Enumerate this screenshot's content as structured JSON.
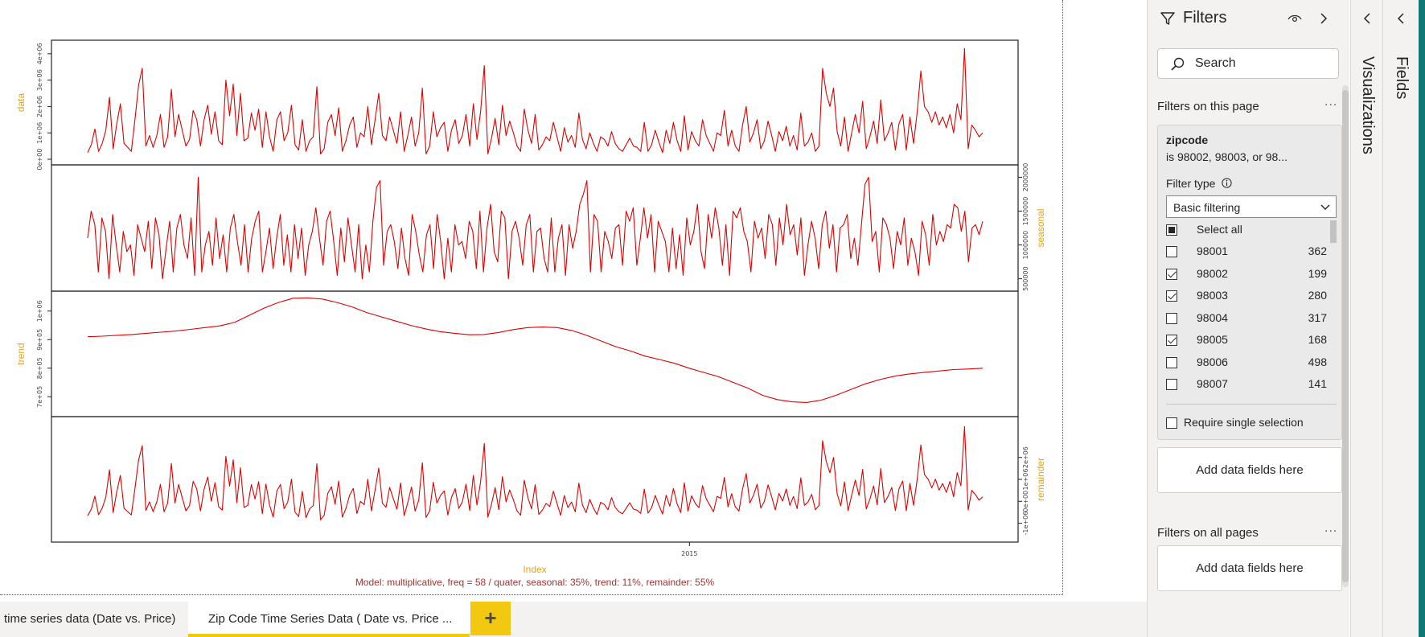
{
  "chart_data": {
    "type": "line",
    "panels": [
      {
        "name": "data",
        "label_side": "left",
        "ylim": [
          0,
          4300000
        ],
        "ticks": [
          0,
          1000000,
          2000000,
          3000000,
          4000000
        ],
        "tick_labels": [
          "0e+00",
          "1e+06",
          "2e+06",
          "3e+06",
          "4e+06"
        ],
        "values": [
          250000,
          550000,
          1150000,
          300000,
          600000,
          1100000,
          2350000,
          400000,
          1350000,
          2100000,
          600000,
          450000,
          300000,
          1500000,
          2800000,
          3450000,
          500000,
          900000,
          450000,
          900000,
          1700000,
          450000,
          850000,
          2650000,
          850000,
          1700000,
          1100000,
          500000,
          750000,
          1850000,
          1500000,
          500000,
          1500000,
          2050000,
          950000,
          1800000,
          700000,
          550000,
          3000000,
          1650000,
          2850000,
          900000,
          2500000,
          700000,
          800000,
          1750000,
          1100000,
          1900000,
          450000,
          1800000,
          850000,
          300000,
          1500000,
          1800000,
          700000,
          1000000,
          2050000,
          550000,
          350000,
          1500000,
          300000,
          700000,
          850000,
          2750000,
          200000,
          400000,
          1400000,
          1700000,
          900000,
          1950000,
          300000,
          700000,
          1300000,
          1600000,
          450000,
          1000000,
          850000,
          2000000,
          550000,
          1500000,
          2500000,
          900000,
          700000,
          1600000,
          1100000,
          600000,
          1800000,
          300000,
          900000,
          1600000,
          500000,
          1000000,
          2700000,
          200000,
          500000,
          1800000,
          850000,
          1200000,
          1400000,
          300000,
          1100000,
          1500000,
          600000,
          900000,
          1700000,
          500000,
          2100000,
          750000,
          1800000,
          3550000,
          200000,
          800000,
          1550000,
          550000,
          2050000,
          900000,
          1450000,
          1000000,
          500000,
          300000,
          1900000,
          1100000,
          600000,
          1700000,
          350000,
          550000,
          850000,
          700000,
          1400000,
          850000,
          300000,
          1200000,
          650000,
          900000,
          450000,
          1750000,
          750000,
          400000,
          1000000,
          600000,
          300000,
          850000,
          750000,
          500000,
          1050000,
          600000,
          400000,
          300000,
          550000,
          800000,
          500000,
          450000,
          300000,
          1400000,
          300000,
          550000,
          1100000,
          650000,
          250000,
          1100000,
          600000,
          1400000,
          700000,
          300000,
          1650000,
          350000,
          1050000,
          700000,
          500000,
          1500000,
          900000,
          600000,
          300000,
          1000000,
          900000,
          1850000,
          500000,
          1100000,
          500000,
          300000,
          1300000,
          2000000,
          650000,
          1000000,
          1500000,
          400000,
          700000,
          1450000,
          900000,
          300000,
          1050000,
          700000,
          1250000,
          500000,
          900000,
          350000,
          1750000,
          500000,
          650000,
          1000000,
          300000,
          500000,
          3450000,
          2500000,
          2000000,
          2700000,
          1050000,
          500000,
          1600000,
          300000,
          1000000,
          1700000,
          1000000,
          2200000,
          400000,
          850000,
          1450000,
          600000,
          2250000,
          700000,
          1000000,
          1400000,
          350000,
          1350000,
          1700000,
          350000,
          1600000,
          600000,
          1800000,
          3350000,
          2000000,
          1800000,
          1400000,
          1800000,
          1300000,
          1600000,
          1200000,
          1700000,
          1000000,
          2100000,
          1500000,
          4200000,
          400000,
          1300000,
          1100000,
          850000,
          1000000
        ]
      },
      {
        "name": "seasonal",
        "label_side": "right",
        "ylim": [
          400000,
          2100000
        ],
        "ticks": [
          500000,
          1000000,
          1500000,
          2000000
        ],
        "tick_labels": [
          "500000",
          "1000000",
          "1500000",
          "2000000"
        ],
        "values": [
          1100000,
          1500000,
          1300000,
          600000,
          1400000,
          1200000,
          500000,
          1450000,
          1000000,
          600000,
          1200000,
          900000,
          1000000,
          550000,
          1300000,
          1100000,
          900000,
          1350000,
          650000,
          1400000,
          1150000,
          500000,
          950000,
          1350000,
          600000,
          1250000,
          1450000,
          1000000,
          800000,
          1400000,
          550000,
          2000000,
          600000,
          1000000,
          1200000,
          700000,
          1400000,
          800000,
          1150000,
          600000,
          1250000,
          1450000,
          1050000,
          700000,
          1300000,
          600000,
          1100000,
          1350000,
          1500000,
          600000,
          900000,
          1250000,
          650000,
          1100000,
          1450000,
          700000,
          1150000,
          600000,
          1300000,
          800000,
          1250000,
          550000,
          1000000,
          1200000,
          1550000,
          1100000,
          700000,
          1350000,
          1500000,
          1050000,
          550000,
          1250000,
          750000,
          1400000,
          1000000,
          600000,
          1300000,
          500000,
          1000000,
          600000,
          1350000,
          1850000,
          1950000,
          700000,
          1200000,
          1300000,
          1050000,
          650000,
          1250000,
          800000,
          550000,
          1450000,
          1200000,
          850000,
          600000,
          1150000,
          1300000,
          650000,
          1450000,
          1050000,
          500000,
          1100000,
          600000,
          1300000,
          1000000,
          1050000,
          800000,
          1350000,
          1200000,
          650000,
          1500000,
          600000,
          1250000,
          1600000,
          900000,
          750000,
          1500000,
          1400000,
          500000,
          1200000,
          1350000,
          1100000,
          700000,
          1300000,
          1450000,
          600000,
          1200000,
          1250000,
          800000,
          600000,
          1400000,
          600000,
          1100000,
          1300000,
          550000,
          1300000,
          950000,
          1200000,
          1600000,
          1750000,
          1950000,
          600000,
          1450000,
          1350000,
          600000,
          1200000,
          1050000,
          800000,
          1250000,
          1300000,
          700000,
          1500000,
          1350000,
          1550000,
          700000,
          1100000,
          1550000,
          1100000,
          1450000,
          600000,
          1350000,
          1200000,
          1050000,
          600000,
          1250000,
          650000,
          1150000,
          550000,
          1400000,
          1000000,
          1200000,
          1600000,
          900000,
          650000,
          1450000,
          1100000,
          1550000,
          1250000,
          700000,
          1300000,
          550000,
          1500000,
          1400000,
          1550000,
          1200000,
          1050000,
          600000,
          1350000,
          1100000,
          1250000,
          800000,
          1450000,
          1300000,
          700000,
          1400000,
          1000000,
          1600000,
          1150000,
          1300000,
          850000,
          1400000,
          550000,
          1000000,
          1350000,
          1100000,
          650000,
          1300000,
          1500000,
          950000,
          1300000,
          600000,
          1250000,
          1300000,
          1450000,
          800000,
          1100000,
          700000,
          1300000,
          1900000,
          2000000,
          1050000,
          1200000,
          600000,
          1400000,
          1300000,
          1100000,
          650000,
          1200000,
          1000000,
          1400000,
          700000,
          1100000,
          900000,
          550000,
          1350000,
          1150000,
          700000,
          1450000,
          1000000,
          1200000,
          1050000,
          1300000,
          1250000,
          1600000,
          1550000,
          1200000,
          1500000,
          750000,
          1250000,
          1300000,
          1150000,
          1350000
        ]
      },
      {
        "name": "trend",
        "label_side": "left",
        "ylim": [
          650000,
          1050000
        ],
        "ticks": [
          700000,
          800000,
          900000,
          1000000
        ],
        "tick_labels": [
          "7e+05",
          "8e+05",
          "9e+05",
          "1e+06"
        ],
        "values": [
          910000,
          912000,
          915000,
          918000,
          922000,
          926000,
          930000,
          936000,
          942000,
          948000,
          960000,
          985000,
          1010000,
          1030000,
          1045000,
          1046000,
          1042000,
          1030000,
          1015000,
          995000,
          980000,
          965000,
          950000,
          938000,
          928000,
          922000,
          917000,
          918000,
          925000,
          935000,
          942000,
          944000,
          942000,
          932000,
          915000,
          895000,
          875000,
          860000,
          842000,
          830000,
          817000,
          800000,
          785000,
          770000,
          750000,
          730000,
          705000,
          690000,
          682000,
          680000,
          688000,
          705000,
          725000,
          745000,
          760000,
          772000,
          780000,
          785000,
          790000,
          795000,
          797000,
          800000
        ]
      }
    ],
    "remainder": {
      "name": "remainder",
      "label_side": "right",
      "ylim": [
        -1600000,
        3600000
      ],
      "ticks": [
        -1000000,
        0,
        1000000,
        2000000
      ],
      "tick_labels": [
        "-1e+06",
        "0e+00",
        "1e+06",
        "2e+06"
      ]
    },
    "x_tick": {
      "label": "2015",
      "position": 0.66
    },
    "xlabel": "Index",
    "caption": "Model: multiplicative, freq = 58 / quater, seasonal: 35%, trend: 11%, remainder: 55%"
  },
  "tabs": [
    "time series data (Date vs. Price)",
    "Zip Code Time Series Data ( Date vs. Price ..."
  ],
  "add_page_label": "+",
  "filters": {
    "title": "Filters",
    "search_placeholder": "Search",
    "on_this_page_label": "Filters on this page",
    "more_label": "...",
    "card": {
      "field": "zipcode",
      "summary": "is 98002, 98003, or 98...",
      "filter_type_label": "Filter type",
      "filter_type_value": "Basic filtering",
      "select_all": "Select all",
      "options": [
        {
          "label": "98001",
          "count": "362",
          "checked": false
        },
        {
          "label": "98002",
          "count": "199",
          "checked": true
        },
        {
          "label": "98003",
          "count": "280",
          "checked": true
        },
        {
          "label": "98004",
          "count": "317",
          "checked": false
        },
        {
          "label": "98005",
          "count": "168",
          "checked": true
        },
        {
          "label": "98006",
          "count": "498",
          "checked": false
        },
        {
          "label": "98007",
          "count": "141",
          "checked": false
        }
      ],
      "require_single": "Require single selection"
    },
    "add_fields_label": "Add data fields here",
    "on_all_pages_label": "Filters on all pages",
    "add_fields_label_2": "Add data fields here"
  },
  "visualizations_label": "Visualizations",
  "fields_label": "Fields",
  "colors": {
    "series": "#e00000",
    "axis_label": "#e8a41c",
    "caption": "#a83232",
    "accent": "#f2c811",
    "strip": "#0b7a75"
  }
}
